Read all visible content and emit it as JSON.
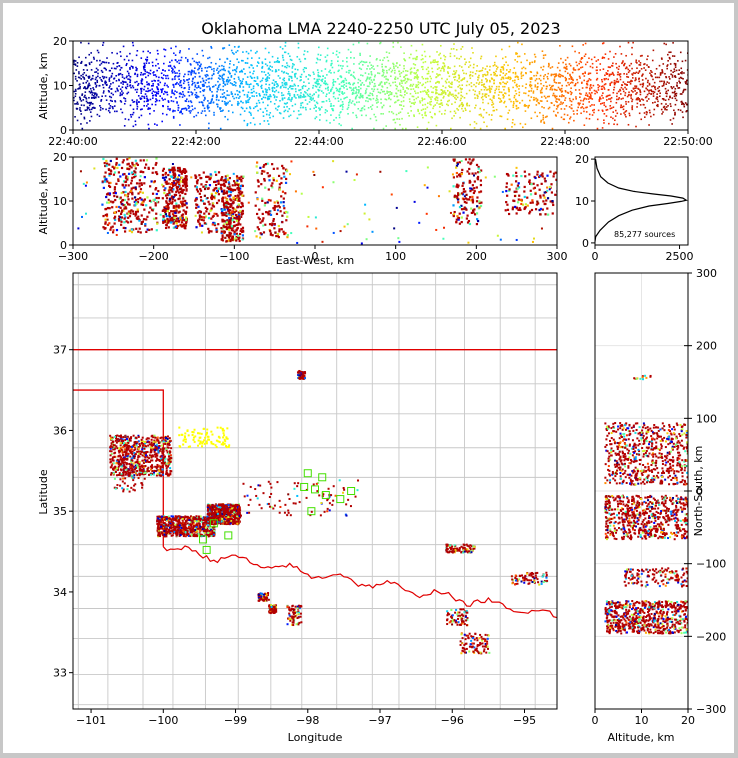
{
  "title": "Oklahoma LMA 2240-2250 UTC July 05, 2023",
  "chart_data": [
    {
      "id": "time_altitude",
      "type": "scatter",
      "title": "Oklahoma LMA 2240-2250 UTC July 05, 2023",
      "xlabel": "",
      "ylabel": "Altitude, km",
      "x_ticks": [
        "22:40:00",
        "22:42:00",
        "22:44:00",
        "22:46:00",
        "22:48:00",
        "22:50:00"
      ],
      "y_ticks": [
        "0",
        "10",
        "20"
      ],
      "xlim": [
        "22:40:00",
        "22:50:00"
      ],
      "ylim": [
        0,
        20
      ],
      "color_encoding": "time",
      "colormap": [
        "#00007f",
        "#0000ff",
        "#00bfff",
        "#3fffbf",
        "#bfff3f",
        "#ffbf00",
        "#ff3000",
        "#7f0000"
      ]
    },
    {
      "id": "east_west_altitude",
      "type": "scatter",
      "xlabel": "East-West, km",
      "ylabel": "Altitude, km",
      "x_ticks": [
        "−300",
        "−200",
        "−100",
        "0",
        "100",
        "200",
        "300"
      ],
      "y_ticks": [
        "0",
        "10",
        "20"
      ],
      "xlim": [
        -300,
        300
      ],
      "ylim": [
        0,
        20
      ],
      "clusters": [
        {
          "x": [
            -265,
            -195
          ],
          "alt": [
            3,
            20
          ],
          "density": "high"
        },
        {
          "x": [
            -190,
            -160
          ],
          "alt": [
            4,
            18
          ],
          "density": "high"
        },
        {
          "x": [
            -150,
            -120
          ],
          "alt": [
            3,
            17
          ],
          "density": "medium"
        },
        {
          "x": [
            -118,
            -90
          ],
          "alt": [
            1,
            16
          ],
          "density": "high"
        },
        {
          "x": [
            -75,
            -35
          ],
          "alt": [
            2,
            19
          ],
          "density": "medium"
        },
        {
          "x": [
            170,
            205
          ],
          "alt": [
            5,
            20
          ],
          "density": "medium"
        },
        {
          "x": [
            235,
            300
          ],
          "alt": [
            7,
            17
          ],
          "density": "medium"
        }
      ]
    },
    {
      "id": "altitude_histogram",
      "type": "line",
      "xlabel": "",
      "ylabel": "",
      "x_ticks": [
        "0",
        "2500"
      ],
      "y_ticks": [
        "0",
        "10",
        "20"
      ],
      "xlim": [
        0,
        2750
      ],
      "ylim": [
        -0.5,
        20.5
      ],
      "annotation": "85,277 sources",
      "x": [
        0,
        20,
        150,
        400,
        700,
        1100,
        1600,
        2150,
        2550,
        2700,
        2600,
        2250,
        1700,
        1150,
        700,
        380,
        170,
        60,
        15
      ],
      "y": [
        0.3,
        1.5,
        3,
        5,
        6.5,
        7.8,
        8.8,
        9.4,
        9.9,
        10.2,
        10.7,
        11.2,
        11.7,
        12.3,
        13.1,
        14.3,
        15.8,
        17.8,
        20
      ]
    },
    {
      "id": "plan_view",
      "type": "scatter",
      "xlabel": "Longitude",
      "ylabel": "Latitude",
      "x_ticks": [
        "−101",
        "−100",
        "−99",
        "−98",
        "−97",
        "−96",
        "−95"
      ],
      "y_ticks": [
        "33",
        "34",
        "35",
        "36",
        "37"
      ],
      "xlim": [
        -101.25,
        -94.55
      ],
      "ylim": [
        32.55,
        37.95
      ],
      "clusters": [
        {
          "lon": [
            -100.75,
            -99.9
          ],
          "lat": [
            35.45,
            35.95
          ],
          "density": "high"
        },
        {
          "lon": [
            -100.7,
            -100.25
          ],
          "lat": [
            35.25,
            35.6
          ],
          "density": "medium"
        },
        {
          "lon": [
            -99.8,
            -99.1
          ],
          "lat": [
            35.8,
            36.05
          ],
          "density": "low"
        },
        {
          "lon": [
            -100.1,
            -99.3
          ],
          "lat": [
            34.7,
            34.95
          ],
          "density": "high"
        },
        {
          "lon": [
            -99.4,
            -98.95
          ],
          "lat": [
            34.85,
            35.1
          ],
          "density": "high"
        },
        {
          "lon": [
            -98.95,
            -97.3
          ],
          "lat": [
            34.95,
            35.4
          ],
          "density": "low"
        },
        {
          "lon": [
            -98.15,
            -98.05
          ],
          "lat": [
            36.65,
            36.75
          ],
          "density": "medium"
        },
        {
          "lon": [
            -98.7,
            -98.55
          ],
          "lat": [
            33.9,
            34.0
          ],
          "density": "medium"
        },
        {
          "lon": [
            -98.55,
            -98.45
          ],
          "lat": [
            33.75,
            33.85
          ],
          "density": "medium"
        },
        {
          "lon": [
            -98.3,
            -98.1
          ],
          "lat": [
            33.6,
            33.85
          ],
          "density": "medium"
        },
        {
          "lon": [
            -96.1,
            -95.8
          ],
          "lat": [
            33.6,
            33.8
          ],
          "density": "medium"
        },
        {
          "lon": [
            -95.9,
            -95.5
          ],
          "lat": [
            33.25,
            33.5
          ],
          "density": "low"
        },
        {
          "lon": [
            -95.2,
            -94.7
          ],
          "lat": [
            34.1,
            34.25
          ],
          "density": "medium"
        },
        {
          "lon": [
            -96.1,
            -95.7
          ],
          "lat": [
            34.5,
            34.6
          ],
          "density": "low"
        }
      ],
      "stations": [
        [
          -98.0,
          35.47
        ],
        [
          -97.8,
          35.42
        ],
        [
          -98.05,
          35.3
        ],
        [
          -97.9,
          35.27
        ],
        [
          -97.75,
          35.2
        ],
        [
          -97.4,
          35.25
        ],
        [
          -97.55,
          35.15
        ],
        [
          -97.95,
          35.0
        ],
        [
          -99.45,
          34.65
        ],
        [
          -99.4,
          34.52
        ],
        [
          -99.1,
          34.7
        ],
        [
          -99.3,
          34.85
        ]
      ]
    },
    {
      "id": "altitude_north_south",
      "type": "scatter",
      "xlabel": "Altitude, km",
      "ylabel": "North-South, km",
      "x_ticks": [
        "0",
        "10",
        "20"
      ],
      "y_ticks": [
        "−300",
        "−200",
        "−100",
        "0",
        "100",
        "200",
        "300"
      ],
      "xlim": [
        0,
        20
      ],
      "ylim": [
        -300,
        300
      ],
      "clusters": [
        {
          "alt": [
            2,
            20
          ],
          "ns": [
            10,
            95
          ],
          "density": "high"
        },
        {
          "alt": [
            2,
            20
          ],
          "ns": [
            -65,
            -5
          ],
          "density": "high"
        },
        {
          "alt": [
            6,
            20
          ],
          "ns": [
            -130,
            -105
          ],
          "density": "medium"
        },
        {
          "alt": [
            2,
            20
          ],
          "ns": [
            -195,
            -150
          ],
          "density": "high"
        },
        {
          "alt": [
            8,
            12
          ],
          "ns": [
            155,
            160
          ],
          "density": "low"
        }
      ]
    }
  ]
}
